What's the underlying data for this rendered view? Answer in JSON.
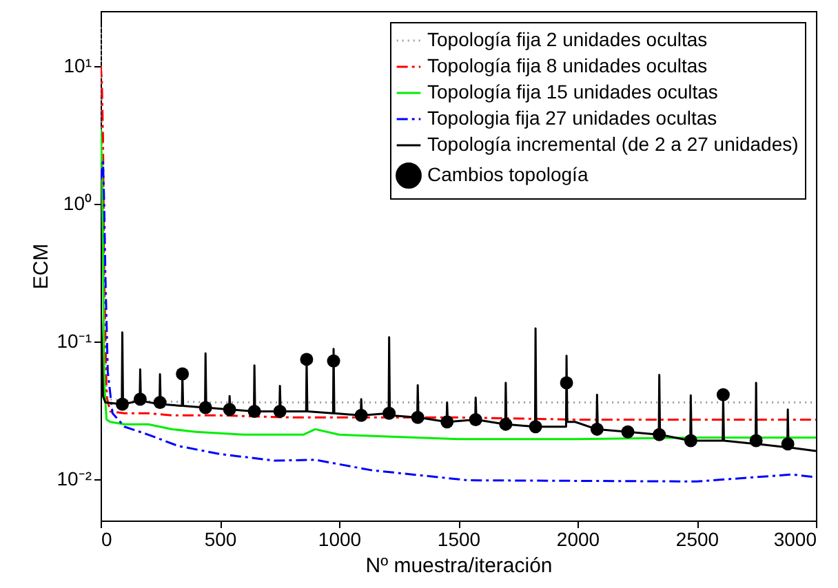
{
  "chart_data": {
    "type": "line",
    "xlabel": "Nº muestra/iteración",
    "ylabel": "ECM",
    "log": "y",
    "grid": false,
    "legend": "top right",
    "xlim": [
      0,
      3000
    ],
    "xticks": [
      0,
      500,
      1000,
      1500,
      2000,
      2500,
      3000
    ],
    "ylim": [
      0.005,
      25
    ],
    "yticks": [
      {
        "value": 0.01,
        "label": "10⁻²"
      },
      {
        "value": 0.1,
        "label": "10⁻¹"
      },
      {
        "value": 1,
        "label": "10⁰"
      },
      {
        "value": 10,
        "label": "10¹"
      }
    ],
    "series": [
      {
        "name": "Topología fija 2 unidades ocultas",
        "color": "#a0a0a0",
        "line_style": "dotted",
        "marker": "none",
        "x": [
          0,
          5,
          10,
          20,
          30,
          100,
          500,
          1000,
          1500,
          2000,
          2500,
          3000
        ],
        "values": [
          19,
          5,
          0.5,
          0.06,
          0.038,
          0.037,
          0.036,
          0.036,
          0.036,
          0.036,
          0.036,
          0.036
        ]
      },
      {
        "name": "Topología fija 8 unidades ocultas",
        "color": "#ff0000",
        "line_style": "dashed",
        "marker": "none",
        "x": [
          0,
          5,
          10,
          15,
          25,
          40,
          100,
          200,
          300,
          500,
          800,
          1000,
          1500,
          2000,
          2500,
          3000
        ],
        "values": [
          10,
          8,
          3,
          0.3,
          0.04,
          0.031,
          0.03,
          0.03,
          0.029,
          0.029,
          0.028,
          0.028,
          0.028,
          0.027,
          0.027,
          0.027
        ]
      },
      {
        "name": "Topología fija 15 unidades ocultas",
        "color": "#00ee00",
        "line_style": "solid",
        "marker": "none",
        "x": [
          0,
          5,
          10,
          15,
          25,
          40,
          100,
          200,
          300,
          400,
          600,
          850,
          900,
          1000,
          1500,
          2000,
          2500,
          3000
        ],
        "values": [
          3.5,
          2,
          0.5,
          0.05,
          0.027,
          0.026,
          0.025,
          0.025,
          0.023,
          0.022,
          0.021,
          0.021,
          0.023,
          0.021,
          0.0195,
          0.0195,
          0.02,
          0.02
        ]
      },
      {
        "name": "Topologia fija 27 unidades ocultas",
        "color": "#0000ff",
        "line_style": "dashed",
        "marker": "none",
        "x": [
          0,
          10,
          15,
          20,
          30,
          50,
          100,
          200,
          325,
          500,
          730,
          900,
          1135,
          1540,
          2000,
          2500,
          2900,
          3000
        ],
        "values": [
          1.5,
          2,
          1,
          0.3,
          0.06,
          0.03,
          0.024,
          0.021,
          0.0174,
          0.0152,
          0.0136,
          0.0138,
          0.0116,
          0.0098,
          0.0097,
          0.0096,
          0.0108,
          0.0103
        ]
      },
      {
        "name": "Topología incremental (de 2 a 27 unidades)",
        "color": "#000000",
        "line_style": "solid",
        "marker": "none",
        "x": [
          0,
          10,
          20,
          89,
          91,
          94,
          164,
          166,
          169,
          247,
          249,
          252,
          341,
          343,
          346,
          438,
          440,
          443,
          539,
          541,
          544,
          643,
          645,
          648,
          750,
          752,
          755,
          862,
          864,
          867,
          975,
          977,
          980,
          1091,
          1093,
          1096,
          1208,
          1210,
          1213,
          1328,
          1330,
          1333,
          1451,
          1453,
          1456,
          1571,
          1573,
          1576,
          1697,
          1699,
          1702,
          1822,
          1824,
          1827,
          1952,
          1954,
          1957,
          1990,
          2080,
          2082,
          2085,
          2211,
          2341,
          2343,
          2346,
          2473,
          2475,
          2478,
          2609,
          2611,
          2614,
          2747,
          2749,
          2752,
          2880,
          2882,
          2885,
          3000
        ],
        "values": [
          0.2,
          0.04,
          0.036,
          0.035,
          0.116,
          0.035,
          0.037,
          0.0625,
          0.037,
          0.035,
          0.0577,
          0.035,
          0.034,
          0.058,
          0.034,
          0.033,
          0.0817,
          0.033,
          0.032,
          0.04,
          0.032,
          0.031,
          0.0668,
          0.031,
          0.031,
          0.0475,
          0.031,
          0.031,
          0.074,
          0.031,
          0.03,
          0.088,
          0.03,
          0.029,
          0.038,
          0.029,
          0.03,
          0.107,
          0.029,
          0.028,
          0.048,
          0.028,
          0.026,
          0.036,
          0.026,
          0.027,
          0.039,
          0.027,
          0.025,
          0.05,
          0.025,
          0.024,
          0.124,
          0.024,
          0.024,
          0.0785,
          0.026,
          0.026,
          0.023,
          0.041,
          0.023,
          0.022,
          0.021,
          0.057,
          0.021,
          0.019,
          0.0405,
          0.019,
          0.019,
          0.041,
          0.019,
          0.018,
          0.05,
          0.018,
          0.017,
          0.032,
          0.017,
          0.016
        ]
      },
      {
        "name": "Cambios topología",
        "type": "scatter",
        "color": "#000000",
        "marker": "circle",
        "x": [
          91,
          166,
          249,
          343,
          440,
          541,
          645,
          752,
          864,
          977,
          1093,
          1210,
          1330,
          1453,
          1573,
          1699,
          1824,
          1954,
          2082,
          2211,
          2343,
          2475,
          2611,
          2749,
          2882
        ],
        "values": [
          0.035,
          0.038,
          0.036,
          0.058,
          0.033,
          0.032,
          0.031,
          0.031,
          0.074,
          0.072,
          0.029,
          0.03,
          0.028,
          0.026,
          0.027,
          0.025,
          0.024,
          0.05,
          0.023,
          0.022,
          0.021,
          0.019,
          0.041,
          0.019,
          0.018
        ]
      }
    ]
  }
}
